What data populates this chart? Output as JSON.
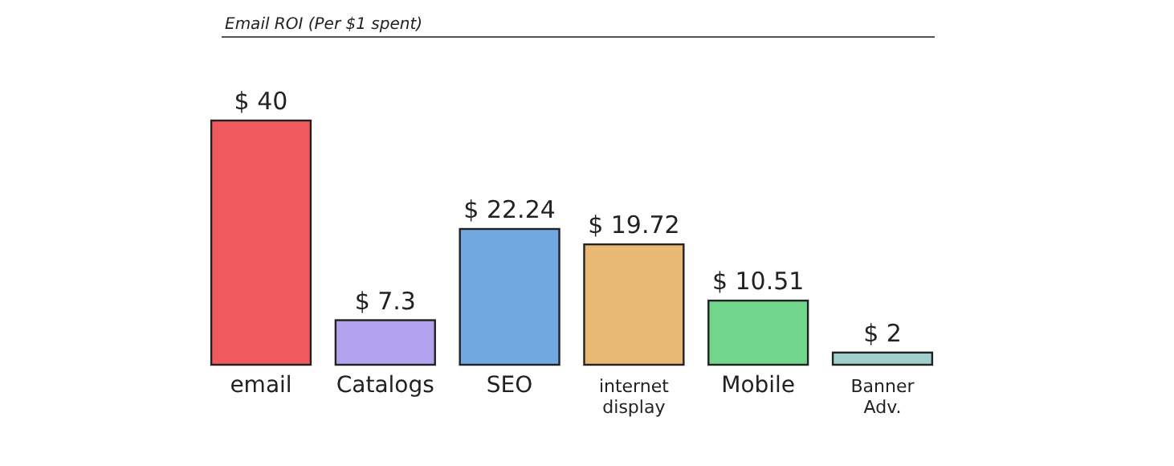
{
  "chart_data": {
    "type": "bar",
    "title": "Email ROI (Per $1 spent)",
    "categories": [
      "email",
      "Catalogs",
      "SEO",
      "internet display",
      "Mobile",
      "Banner Adv."
    ],
    "values": [
      40,
      7.3,
      22.24,
      19.72,
      10.51,
      2
    ],
    "colors": [
      "#f05a5e",
      "#b3a3ee",
      "#70a8e2",
      "#e9b872",
      "#72d68c",
      "#9fd0cc"
    ],
    "value_labels": [
      "$ 40",
      "$ 7.3",
      "$ 22.24",
      "$ 19.72",
      "$ 10.51",
      "$ 2"
    ],
    "grid": false,
    "legend": false
  }
}
